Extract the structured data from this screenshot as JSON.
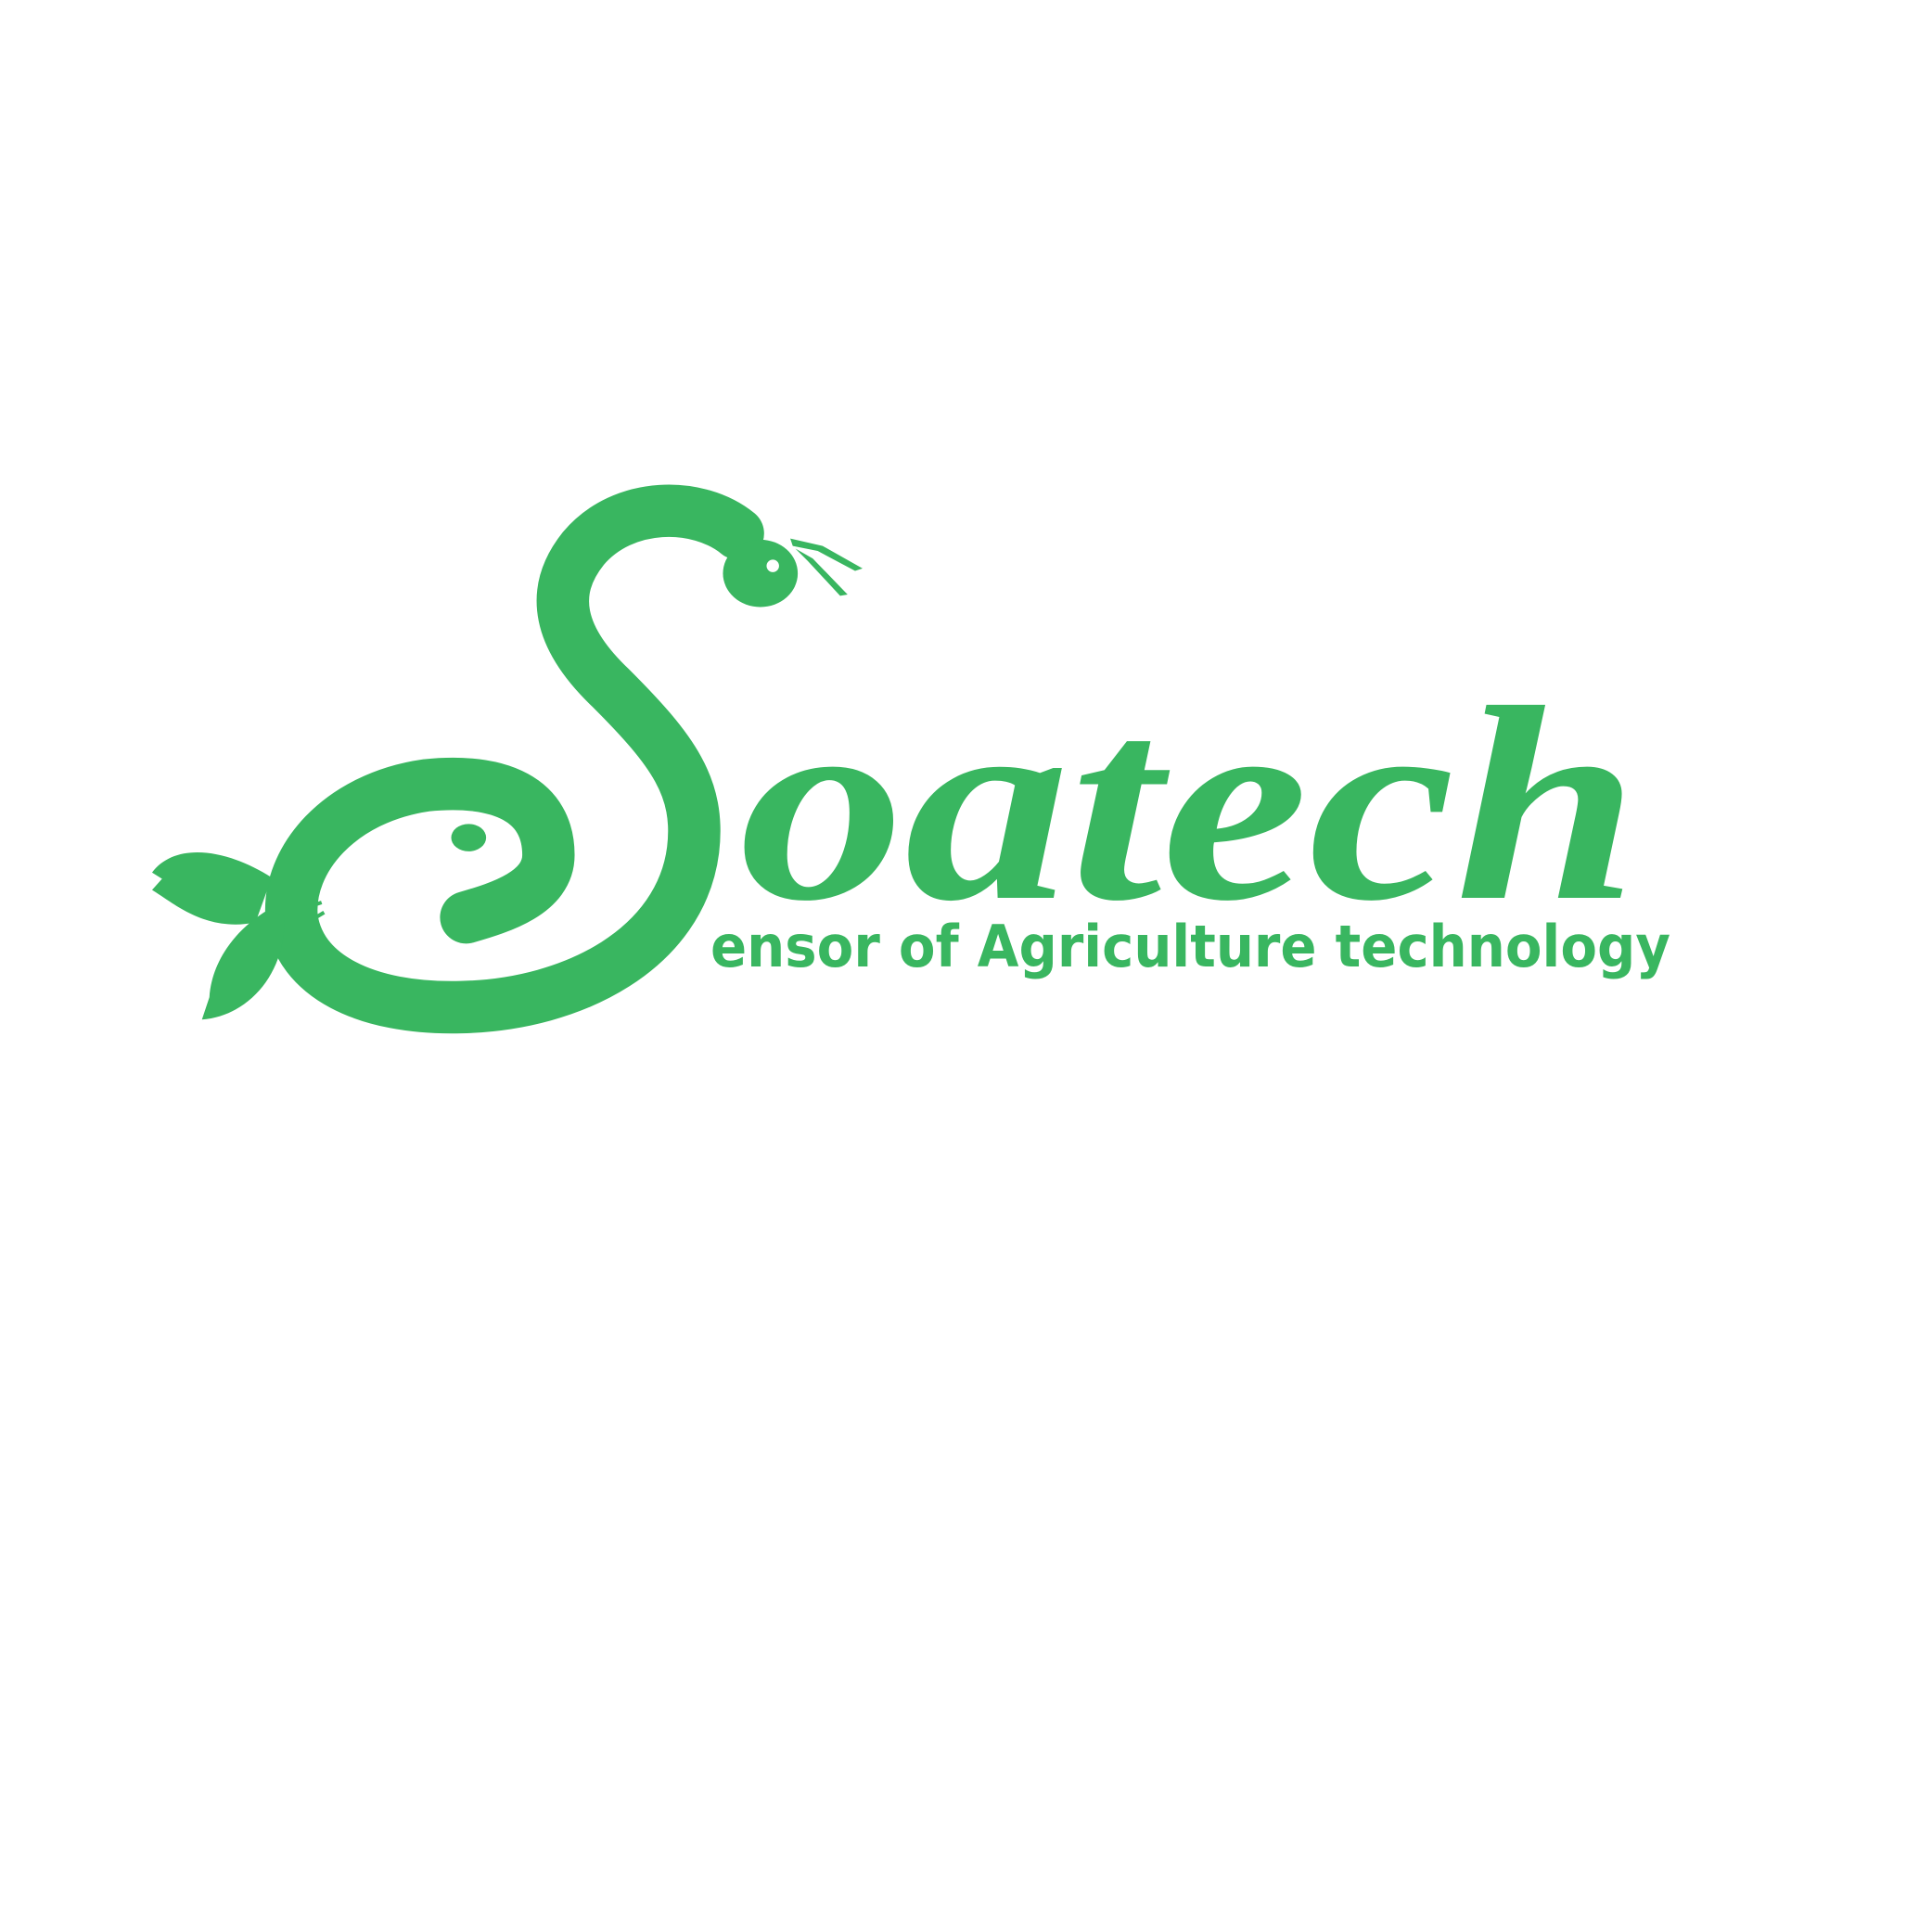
{
  "logo": {
    "wordmark": "oatech",
    "tagline": "ensor of Agriculture technology"
  }
}
